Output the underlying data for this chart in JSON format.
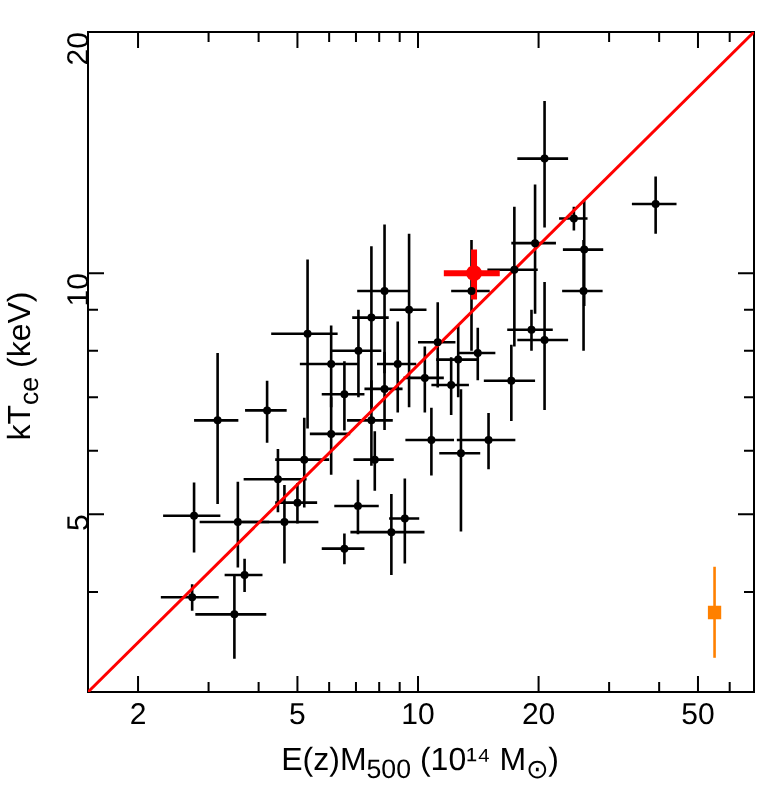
{
  "chart_data": {
    "type": "scatter",
    "xlabel": "E(z)M$_{500}$ (10¹⁴ M$_{⊙}$)",
    "ylabel": "kT$_{ce}$ (keV)",
    "log": "xy",
    "grid": false,
    "xlim": [
      1.5,
      69
    ],
    "ylim": [
      3,
      20
    ],
    "xticks": [
      2,
      {
        "value": 3,
        "label": null
      },
      {
        "value": 4,
        "label": null
      },
      5,
      {
        "value": 6,
        "label": null
      },
      {
        "value": 7,
        "label": null
      },
      {
        "value": 8,
        "label": null
      },
      {
        "value": 9,
        "label": null
      },
      10,
      20,
      {
        "value": 30,
        "label": null
      },
      {
        "value": 40,
        "label": null
      },
      50,
      {
        "value": 60,
        "label": null
      }
    ],
    "yticks": [
      {
        "value": 4,
        "label": null
      },
      5,
      {
        "value": 6,
        "label": null
      },
      {
        "value": 7,
        "label": null
      },
      {
        "value": 8,
        "label": null
      },
      {
        "value": 9,
        "label": null
      },
      10,
      20
    ],
    "series": [
      {
        "type": "scatter",
        "color": "#000000",
        "x": [
          20.7,
          39.2,
          24.5,
          26,
          25.9,
          19.6,
          19.2,
          20.7,
          17.1,
          17.4,
          13.6,
          8.25,
          9.5,
          5.3,
          7.65,
          11.2,
          7.1,
          12.6,
          8.9,
          6.07,
          14.1,
          3.16,
          4.2,
          2.76,
          3.55,
          2.73,
          3.48,
          3.69,
          4.47,
          4.64,
          5.0,
          6.55,
          8.58,
          9.27,
          5.2,
          7.08,
          12.8,
          15.0,
          10.8,
          7.65,
          6.55,
          8.25,
          10.4,
          6.07,
          12.1,
          7.8
        ],
        "values": [
          13.9,
          12.2,
          11.7,
          10.7,
          9.5,
          10.9,
          8.5,
          8.25,
          7.34,
          10.1,
          9.5,
          9.5,
          9.0,
          8.4,
          8.8,
          8.2,
          8.0,
          7.8,
          7.7,
          7.7,
          7.95,
          6.55,
          6.74,
          4.98,
          4.89,
          3.94,
          3.75,
          4.2,
          5.53,
          4.89,
          5.17,
          4.53,
          4.75,
          4.94,
          5.85,
          5.12,
          5.96,
          6.19,
          6.19,
          6.55,
          7.06,
          7.17,
          7.4,
          6.3,
          7.25,
          5.85
        ],
        "xerrors": [
          3,
          5,
          2,
          3,
          3,
          2.5,
          2.5,
          3,
          2.5,
          2.5,
          1.5,
          1.2,
          1,
          1,
          0.8,
          1.2,
          1,
          1.5,
          1,
          1,
          1.5,
          0.4,
          0.5,
          0.45,
          0.7,
          0.45,
          0.7,
          0.4,
          0.8,
          1,
          0.6,
          0.8,
          1.8,
          0.8,
          0.8,
          0.9,
          1.5,
          2.5,
          1.5,
          1,
          0.8,
          0.9,
          1.2,
          0.7,
          1.3,
          0.9
        ],
        "errors": [
          2.5,
          1,
          0.4,
          1.6,
          1.5,
          2,
          0.5,
          1.5,
          0.8,
          2,
          1.5,
          2,
          2.2,
          2,
          2,
          1,
          1,
          0.8,
          1,
          0.9,
          0.6,
          1.4,
          0.6,
          0.5,
          0.6,
          0.15,
          0.45,
          0.2,
          0.5,
          0.55,
          0.3,
          0.2,
          0.55,
          0.6,
          0.75,
          0.4,
          1.2,
          0.5,
          0.6,
          0.8,
          0.7,
          0.8,
          0.7,
          0.7,
          0.6,
          0.5
        ]
      },
      {
        "type": "scatter",
        "color": "#ff0000",
        "x": [
          13.8
        ],
        "values": [
          10.0
        ],
        "xerrors": [
          [
            11.6,
            16.0
          ]
        ],
        "errors": [
          [
            9.27,
            10.7
          ]
        ]
      },
      {
        "type": "scatter",
        "color": "#ff8000",
        "marker": "square",
        "x": [
          55
        ],
        "values": [
          3.77
        ],
        "errors": [
          [
            3.31,
            4.3
          ]
        ]
      },
      {
        "type": "line",
        "color": "#ff0000",
        "line_style": "solid",
        "x": [
          1.5,
          69
        ],
        "values": [
          3,
          20
        ]
      }
    ]
  }
}
